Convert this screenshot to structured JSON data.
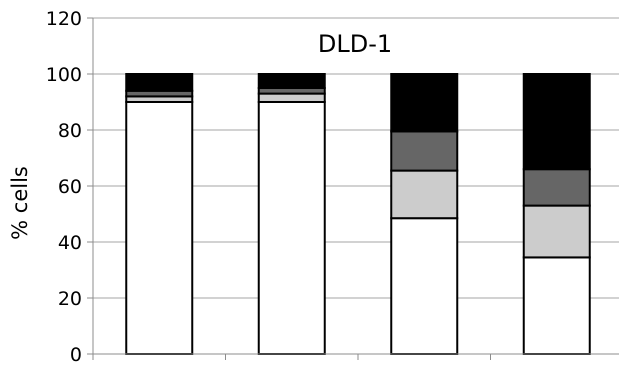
{
  "chart_data": {
    "type": "bar",
    "stacked": true,
    "title": "DLD-1",
    "xlabel": "",
    "ylabel": "% cells",
    "ylim": [
      0,
      120
    ],
    "yticks": [
      0,
      20,
      40,
      60,
      80,
      100,
      120
    ],
    "grid": true,
    "legend": "none",
    "categories": [
      "",
      "",
      "",
      ""
    ],
    "series": [
      {
        "color": "#ffffff",
        "values": [
          90,
          90,
          48.5,
          34.5
        ]
      },
      {
        "color": "#cccccc",
        "values": [
          2,
          3,
          17,
          18.5
        ]
      },
      {
        "color": "#666666",
        "values": [
          2,
          2,
          14,
          13
        ]
      },
      {
        "color": "#000000",
        "values": [
          6,
          5,
          20.5,
          34
        ]
      }
    ]
  }
}
